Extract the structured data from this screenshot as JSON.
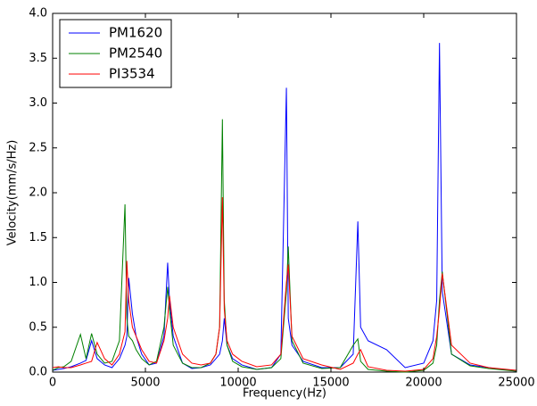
{
  "chart_data": {
    "type": "line",
    "xlabel": "Frequency(Hz)",
    "ylabel": "Velocity(mm/s/Hz)",
    "x": [
      0,
      300,
      600,
      1000,
      1500,
      1800,
      2100,
      2400,
      2800,
      3200,
      3600,
      3900,
      4000,
      4100,
      4300,
      4500,
      4800,
      5200,
      5600,
      6000,
      6200,
      6300,
      6500,
      7000,
      7500,
      8000,
      8500,
      8800,
      9000,
      9150,
      9250,
      9400,
      9700,
      10200,
      11000,
      11800,
      12300,
      12600,
      12700,
      12900,
      13500,
      14500,
      15500,
      16200,
      16450,
      16600,
      17000,
      18000,
      19000,
      20000,
      20500,
      20700,
      20850,
      21000,
      21500,
      22500,
      23500,
      25000
    ],
    "series": [
      {
        "name": "PM1620",
        "color": "#0000ff",
        "values": [
          0.02,
          0.03,
          0.04,
          0.06,
          0.1,
          0.13,
          0.35,
          0.15,
          0.08,
          0.05,
          0.15,
          0.3,
          0.4,
          1.05,
          0.65,
          0.4,
          0.2,
          0.08,
          0.1,
          0.4,
          1.22,
          0.8,
          0.4,
          0.1,
          0.04,
          0.05,
          0.08,
          0.15,
          0.2,
          0.35,
          0.6,
          0.3,
          0.15,
          0.08,
          0.03,
          0.05,
          0.2,
          3.17,
          0.6,
          0.3,
          0.12,
          0.05,
          0.05,
          0.2,
          1.68,
          0.5,
          0.35,
          0.25,
          0.05,
          0.1,
          0.35,
          0.8,
          3.67,
          0.9,
          0.2,
          0.08,
          0.05,
          0.01
        ]
      },
      {
        "name": "PM2540",
        "color": "#008000",
        "values": [
          0.02,
          0.05,
          0.06,
          0.12,
          0.42,
          0.15,
          0.43,
          0.2,
          0.1,
          0.12,
          0.35,
          1.87,
          0.6,
          0.4,
          0.35,
          0.25,
          0.15,
          0.08,
          0.12,
          0.5,
          0.95,
          0.7,
          0.3,
          0.1,
          0.05,
          0.05,
          0.1,
          0.2,
          0.5,
          2.82,
          0.8,
          0.3,
          0.12,
          0.06,
          0.03,
          0.05,
          0.15,
          0.9,
          1.4,
          0.35,
          0.1,
          0.04,
          0.05,
          0.3,
          0.37,
          0.12,
          0.03,
          0.01,
          0.0,
          0.02,
          0.1,
          0.3,
          0.8,
          1.12,
          0.2,
          0.07,
          0.04,
          0.01
        ]
      },
      {
        "name": "PI3534",
        "color": "#ff0000",
        "values": [
          0.05,
          0.06,
          0.05,
          0.05,
          0.08,
          0.1,
          0.12,
          0.33,
          0.15,
          0.08,
          0.2,
          0.45,
          1.24,
          0.8,
          0.5,
          0.4,
          0.25,
          0.12,
          0.1,
          0.35,
          0.6,
          0.85,
          0.5,
          0.2,
          0.1,
          0.08,
          0.1,
          0.2,
          0.5,
          1.95,
          0.7,
          0.35,
          0.2,
          0.12,
          0.06,
          0.08,
          0.2,
          1.0,
          1.2,
          0.4,
          0.15,
          0.08,
          0.03,
          0.1,
          0.2,
          0.25,
          0.06,
          0.02,
          0.01,
          0.03,
          0.15,
          0.4,
          0.7,
          1.1,
          0.3,
          0.1,
          0.05,
          0.02
        ]
      }
    ],
    "xlim": [
      0,
      25000
    ],
    "xticks": [
      0,
      5000,
      10000,
      15000,
      20000,
      25000
    ],
    "ylim": [
      0,
      4
    ],
    "yticks": [
      {
        "value": 0,
        "label": "0.0"
      },
      0.5,
      {
        "value": 1,
        "label": "1.0"
      },
      1.5,
      {
        "value": 2,
        "label": "2.0"
      },
      2.5,
      {
        "value": 3,
        "label": "3.0"
      },
      3.5,
      {
        "value": 4,
        "label": "4.0"
      }
    ],
    "legend": "upper left",
    "grid": false
  }
}
